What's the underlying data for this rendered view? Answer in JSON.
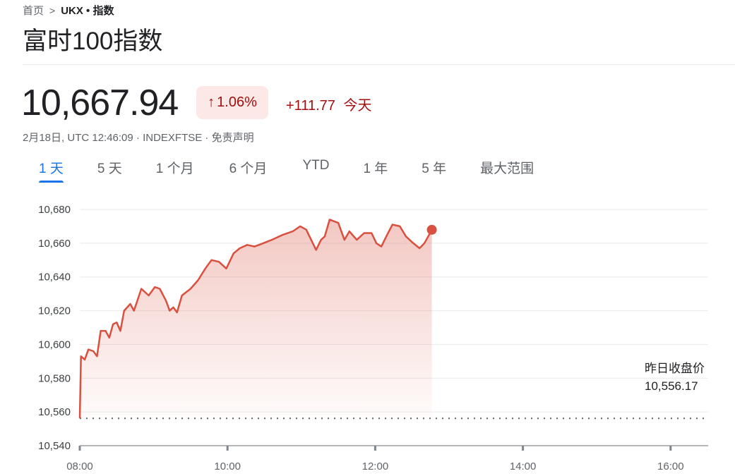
{
  "breadcrumb": {
    "home": "首页",
    "separator": ">",
    "current": "UKX • 指数"
  },
  "title": "富时100指数",
  "quote": {
    "price": "10,667.94",
    "change_percent": "1.06%",
    "direction_icon": "arrow-up-icon",
    "change_abs": "+111.77",
    "change_period": "今天",
    "meta": "2月18日, UTC 12:46:09 · INDEXFTSE · 免责声明"
  },
  "colors": {
    "up": "#a50e0e",
    "line": "#d9503f",
    "accent": "#1a73e8"
  },
  "tabs": [
    {
      "label": "1 天",
      "active": true
    },
    {
      "label": "5 天"
    },
    {
      "label": "1 个月"
    },
    {
      "label": "6 个月"
    },
    {
      "label": "YTD"
    },
    {
      "label": "1 年"
    },
    {
      "label": "5 年"
    },
    {
      "label": "最大范围"
    }
  ],
  "chart_data": {
    "type": "area",
    "ylim": [
      10540,
      10680
    ],
    "yticks": [
      "10,680",
      "10,660",
      "10,640",
      "10,620",
      "10,600",
      "10,580",
      "10,560",
      "10,540"
    ],
    "ytick_values": [
      10680,
      10660,
      10640,
      10620,
      10600,
      10580,
      10560,
      10540
    ],
    "xlim": [
      "08:00",
      "16:30"
    ],
    "xticks": [
      "08:00",
      "10:00",
      "12:00",
      "14:00",
      "16:00"
    ],
    "grid": true,
    "previous_close": {
      "label": "昨日收盘价",
      "value": 10556.17,
      "value_text": "10,556.17"
    },
    "series": [
      {
        "x": [
          "08:00",
          "08:01",
          "08:04",
          "08:07",
          "08:11",
          "08:14",
          "08:17",
          "08:21",
          "08:24",
          "08:27",
          "08:30",
          "08:33",
          "08:36",
          "08:41",
          "08:44",
          "08:50",
          "08:56",
          "09:01",
          "09:05",
          "09:10",
          "09:13",
          "09:16",
          "09:19",
          "09:23",
          "09:30",
          "09:36",
          "09:42",
          "09:47",
          "09:53",
          "09:59",
          "10:05",
          "10:10",
          "10:16",
          "10:22",
          "10:29",
          "10:36",
          "10:45",
          "10:53",
          "10:59",
          "11:04",
          "11:08",
          "11:12",
          "11:16",
          "11:19",
          "11:23",
          "11:30",
          "11:35",
          "11:39",
          "11:45",
          "11:51",
          "11:57",
          "12:01",
          "12:05",
          "12:09",
          "12:14",
          "12:20",
          "12:25",
          "12:31",
          "12:36",
          "12:40",
          "12:43",
          "12:46"
        ],
        "y": [
          10556.2,
          10593,
          10591,
          10597,
          10596,
          10593,
          10608,
          10608,
          10604,
          10612,
          10613,
          10608,
          10620,
          10624,
          10620,
          10633,
          10629,
          10634,
          10633,
          10626,
          10620,
          10622,
          10619,
          10629,
          10633,
          10638,
          10645,
          10650,
          10649,
          10645,
          10654,
          10657,
          10659,
          10658,
          10660,
          10662,
          10665,
          10667,
          10670,
          10668,
          10662,
          10656,
          10662,
          10664,
          10674,
          10672,
          10662,
          10667,
          10662,
          10666,
          10666,
          10660,
          10658,
          10664,
          10671,
          10670,
          10664,
          10660,
          10657,
          10660,
          10664,
          10667.94
        ]
      }
    ]
  }
}
